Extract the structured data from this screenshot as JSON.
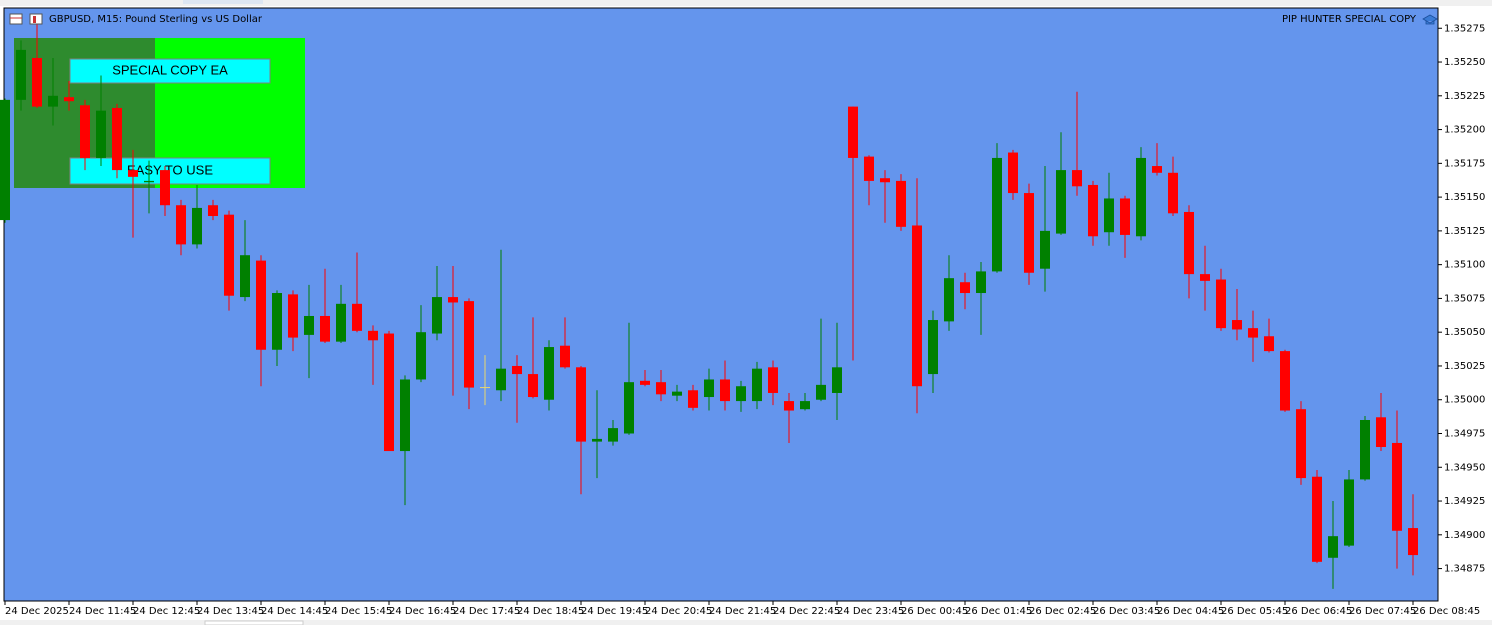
{
  "chart_data": {
    "type": "candlestick",
    "title": "GBPUSD, M15:  Pound Sterling vs US Dollar",
    "indicator_title": "PIP HUNTER SPECIAL COPY",
    "buttons": [
      "SPECIAL COPY EA",
      "EASY TO USE"
    ],
    "up_color": "#008000",
    "down_color": "#ff0000",
    "doji_color": "#e8d870",
    "background": "#6495ed",
    "categories": [
      "24 Dec 2025",
      null,
      null,
      null,
      "24 Dec 11:45",
      null,
      null,
      null,
      "24 Dec 12:45",
      null,
      null,
      null,
      "24 Dec 13:45",
      null,
      null,
      null,
      "24 Dec 14:45",
      null,
      null,
      null,
      "24 Dec 15:45",
      null,
      null,
      null,
      "24 Dec 16:45",
      null,
      null,
      null,
      "24 Dec 17:45",
      null,
      null,
      null,
      "24 Dec 18:45",
      null,
      null,
      null,
      "24 Dec 19:45",
      null,
      null,
      null,
      "24 Dec 20:45",
      null,
      null,
      null,
      "24 Dec 21:45",
      null,
      null,
      null,
      "24 Dec 22:45",
      null,
      null,
      null,
      "24 Dec 23:45",
      null,
      null,
      null,
      "26 Dec 00:45",
      null,
      null,
      null,
      "26 Dec 01:45",
      null,
      null,
      null,
      "26 Dec 02:45",
      null,
      null,
      null,
      "26 Dec 03:45",
      null,
      null,
      null,
      "26 Dec 04:45",
      null,
      null,
      null,
      "26 Dec 05:45",
      null,
      null,
      null,
      "26 Dec 06:45",
      null,
      null,
      null,
      "26 Dec 07:45",
      null,
      null,
      null,
      "26 Dec 08:45"
    ],
    "open": [
      1.35133,
      1.35222,
      1.35253,
      1.35217,
      1.35224,
      1.35218,
      1.35179,
      1.35216,
      1.3517,
      1.35161,
      1.3517,
      1.35144,
      1.35115,
      1.35144,
      1.35137,
      1.35076,
      1.35103,
      1.35037,
      1.35078,
      1.35048,
      1.35062,
      1.35043,
      1.35071,
      1.35051,
      1.35049,
      1.34962,
      1.35015,
      1.35049,
      1.35076,
      1.35073,
      1.35009,
      1.35007,
      1.35025,
      1.35019,
      1.35,
      1.3504,
      1.35024,
      1.34969,
      1.34969,
      1.34975,
      1.35014,
      1.35013,
      1.35003,
      1.35007,
      1.35002,
      1.35015,
      1.34999,
      1.34999,
      1.35024,
      1.34999,
      1.34993,
      1.35,
      1.35005,
      1.35217,
      1.3518,
      1.35164,
      1.35162,
      1.35129,
      1.35019,
      1.35058,
      1.35087,
      1.35079,
      1.35095,
      1.35183,
      1.35153,
      1.35097,
      1.35123,
      1.3517,
      1.35159,
      1.35124,
      1.35149,
      1.35121,
      1.35173,
      1.35168,
      1.35139,
      1.35093,
      1.35089,
      1.35059,
      1.35053,
      1.35047,
      1.35036,
      1.34993,
      1.34943,
      1.34883,
      1.34892,
      1.34941,
      1.34987,
      1.34968,
      1.34905
    ],
    "high": [
      1.35223,
      1.35266,
      1.35285,
      1.35253,
      1.35236,
      1.35222,
      1.3524,
      1.35219,
      1.35185,
      1.35177,
      1.35173,
      1.35148,
      1.35159,
      1.35148,
      1.3514,
      1.35133,
      1.35107,
      1.35081,
      1.35081,
      1.35085,
      1.35097,
      1.35085,
      1.35109,
      1.35055,
      1.35051,
      1.35018,
      1.3507,
      1.35099,
      1.35099,
      1.35075,
      1.35033,
      1.35111,
      1.35033,
      1.35061,
      1.35044,
      1.35061,
      1.35025,
      1.35007,
      1.34985,
      1.35057,
      1.35022,
      1.35022,
      1.35011,
      1.35011,
      1.35023,
      1.35029,
      1.35014,
      1.35028,
      1.35029,
      1.35005,
      1.35005,
      1.3506,
      1.35057,
      1.35217,
      1.35181,
      1.3517,
      1.35167,
      1.35164,
      1.35066,
      1.35107,
      1.35094,
      1.35102,
      1.3519,
      1.35185,
      1.3516,
      1.35173,
      1.35198,
      1.35228,
      1.35162,
      1.35168,
      1.35151,
      1.35187,
      1.3519,
      1.3518,
      1.35144,
      1.35114,
      1.35097,
      1.35082,
      1.35066,
      1.3506,
      1.35037,
      1.34999,
      1.34948,
      1.34925,
      1.34948,
      1.34988,
      1.35005,
      1.34992,
      1.3493
    ],
    "low": [
      1.35131,
      1.35214,
      1.35216,
      1.35203,
      1.35214,
      1.3517,
      1.35173,
      1.35164,
      1.3512,
      1.35138,
      1.35136,
      1.35107,
      1.35112,
      1.35133,
      1.35066,
      1.35073,
      1.3501,
      1.35025,
      1.35036,
      1.35016,
      1.35042,
      1.35042,
      1.3505,
      1.35011,
      1.34962,
      1.34922,
      1.35013,
      1.35044,
      1.35003,
      1.34993,
      1.34996,
      1.34999,
      1.34983,
      1.35001,
      1.34992,
      1.35023,
      1.3493,
      1.34942,
      1.34966,
      1.34974,
      1.3501,
      1.34999,
      1.34999,
      1.34992,
      1.34992,
      1.34992,
      1.34991,
      1.34993,
      1.34996,
      1.34968,
      1.34992,
      1.34999,
      1.34985,
      1.35029,
      1.35144,
      1.35131,
      1.35125,
      1.3499,
      1.35005,
      1.35051,
      1.35067,
      1.35048,
      1.35094,
      1.35148,
      1.35085,
      1.3508,
      1.35122,
      1.35151,
      1.35114,
      1.35114,
      1.35105,
      1.35118,
      1.35166,
      1.35136,
      1.35075,
      1.35066,
      1.35051,
      1.35044,
      1.35028,
      1.35035,
      1.34991,
      1.34937,
      1.34879,
      1.3486,
      1.34891,
      1.3494,
      1.34962,
      1.34875,
      1.3487
    ],
    "close": [
      1.35222,
      1.35259,
      1.35217,
      1.35225,
      1.35221,
      1.35179,
      1.35214,
      1.3517,
      1.35165,
      1.35162,
      1.35144,
      1.35115,
      1.35142,
      1.35136,
      1.35077,
      1.35107,
      1.35037,
      1.35079,
      1.35046,
      1.35062,
      1.35043,
      1.35071,
      1.35051,
      1.35044,
      1.34962,
      1.35015,
      1.3505,
      1.35076,
      1.35072,
      1.35009,
      1.35009,
      1.35023,
      1.35019,
      1.35002,
      1.35039,
      1.35024,
      1.34969,
      1.34971,
      1.34979,
      1.35013,
      1.35011,
      1.35004,
      1.35006,
      1.34994,
      1.35015,
      1.34999,
      1.3501,
      1.35023,
      1.35005,
      1.34992,
      1.34999,
      1.35011,
      1.35024,
      1.35179,
      1.35162,
      1.35161,
      1.35128,
      1.3501,
      1.35059,
      1.3509,
      1.35079,
      1.35095,
      1.35179,
      1.35153,
      1.35094,
      1.35125,
      1.3517,
      1.35158,
      1.35121,
      1.35149,
      1.35122,
      1.35179,
      1.35168,
      1.35138,
      1.35093,
      1.35088,
      1.35053,
      1.35052,
      1.35046,
      1.35036,
      1.34992,
      1.34942,
      1.3488,
      1.34899,
      1.34941,
      1.34985,
      1.34965,
      1.34903,
      1.34885
    ],
    "ylim": [
      1.34851,
      1.3529
    ],
    "yticks": [
      1.35275,
      {
        "value": 1.3525,
        "label": "1.35250"
      },
      1.35225,
      {
        "value": 1.352,
        "label": "1.35200"
      },
      1.35175,
      {
        "value": 1.3515,
        "label": "1.35150"
      },
      1.35125,
      {
        "value": 1.351,
        "label": "1.35100"
      },
      1.35075,
      {
        "value": 1.3505,
        "label": "1.35050"
      },
      1.35025,
      {
        "value": 1.35,
        "label": "1.35000"
      },
      1.34975,
      {
        "value": 1.3495,
        "label": "1.34950"
      },
      1.34925,
      {
        "value": 1.349,
        "label": "1.34900"
      },
      1.34875
    ]
  }
}
